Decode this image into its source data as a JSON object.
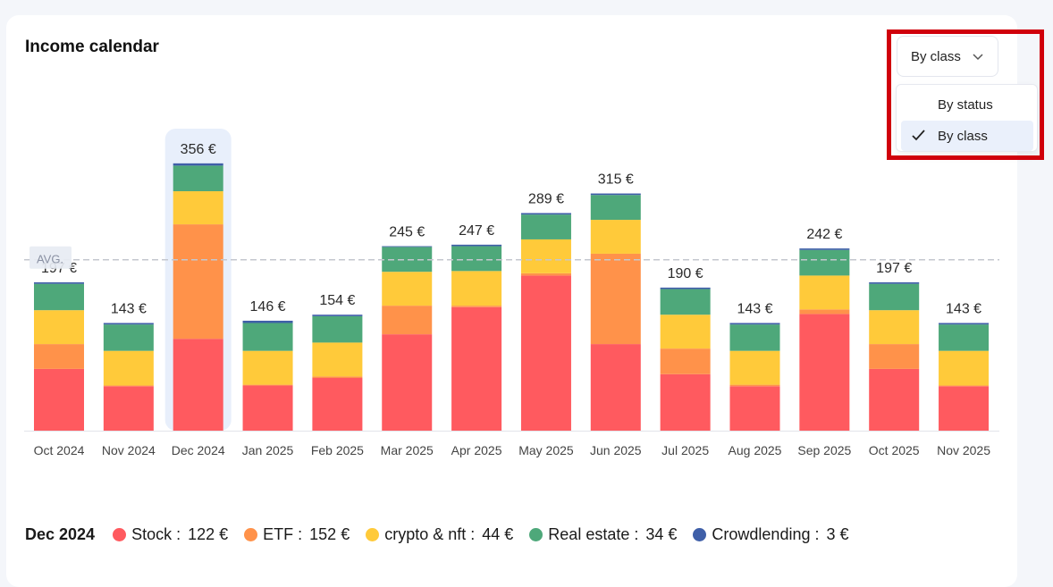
{
  "header": {
    "title": "Income calendar"
  },
  "dropdown": {
    "selected_label": "By class",
    "options": [
      {
        "label": "By status",
        "selected": false
      },
      {
        "label": "By class",
        "selected": true
      }
    ]
  },
  "chart_data": {
    "type": "bar",
    "stacked": true,
    "unit": "€",
    "categories": [
      "Oct 2024",
      "Nov 2024",
      "Dec 2024",
      "Jan 2025",
      "Feb 2025",
      "Mar 2025",
      "Apr 2025",
      "May 2025",
      "Jun 2025",
      "Jul 2025",
      "Aug 2025",
      "Sep 2025",
      "Oct 2025",
      "Nov 2025"
    ],
    "totals_labels": [
      "197 €",
      "143 €",
      "356 €",
      "146 €",
      "154 €",
      "245 €",
      "247 €",
      "289 €",
      "315 €",
      "190 €",
      "143 €",
      "242 €",
      "197 €",
      "143 €"
    ],
    "totals": [
      197,
      143,
      356,
      146,
      154,
      245,
      247,
      289,
      315,
      190,
      143,
      242,
      197,
      143
    ],
    "series": [
      {
        "name": "Stock",
        "color": "#ff5a5f",
        "values": [
          82,
          59,
          122,
          60,
          70,
          128,
          164,
          206,
          115,
          75,
          59,
          155,
          82,
          59
        ]
      },
      {
        "name": "ETF",
        "color": "#ff924a",
        "values": [
          33,
          1,
          152,
          1,
          2,
          38,
          2,
          3,
          120,
          34,
          2,
          6,
          33,
          1
        ]
      },
      {
        "name": "crypto & nft",
        "color": "#ffca3a",
        "values": [
          45,
          46,
          44,
          45,
          45,
          45,
          46,
          45,
          45,
          45,
          45,
          45,
          45,
          46
        ]
      },
      {
        "name": "Real estate",
        "color": "#4ea87a",
        "values": [
          35,
          35,
          34,
          37,
          35,
          33,
          33,
          33,
          33,
          34,
          35,
          34,
          35,
          35
        ]
      },
      {
        "name": "Crowdlending",
        "color": "#3f5fa8",
        "values": [
          2,
          2,
          3,
          3,
          2,
          1,
          2,
          2,
          2,
          2,
          2,
          2,
          2,
          2
        ]
      }
    ],
    "highlighted_category": "Dec 2024",
    "average_label": "AVG.",
    "average": 227,
    "ylim": [
      0,
      390
    ],
    "grid": false
  },
  "legend": {
    "month": "Dec 2024",
    "items": [
      {
        "name": "Stock :",
        "value": "122 €",
        "color": "#ff5a5f"
      },
      {
        "name": "ETF :",
        "value": "152 €",
        "color": "#ff924a"
      },
      {
        "name": "crypto & nft :",
        "value": "44 €",
        "color": "#ffca3a"
      },
      {
        "name": "Real estate :",
        "value": "34 €",
        "color": "#4ea87a"
      },
      {
        "name": "Crowdlending :",
        "value": "3 €",
        "color": "#3f5fa8"
      }
    ]
  }
}
